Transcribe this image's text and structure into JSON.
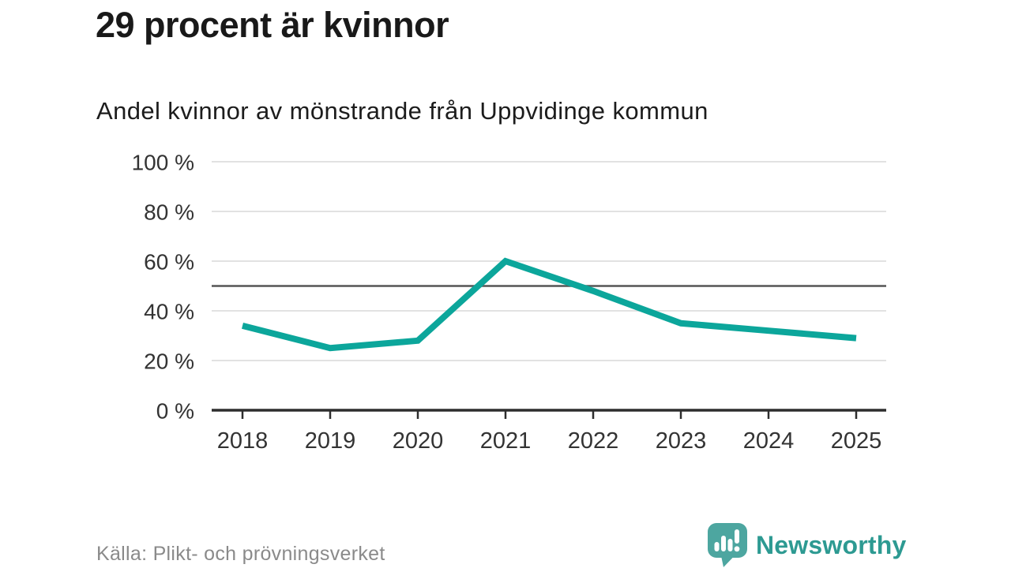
{
  "header": {
    "title": "29 procent är kvinnor",
    "subtitle": "Andel kvinnor av mönstrande från Uppvidinge kommun"
  },
  "chart_data": {
    "type": "line",
    "title": "29 procent är kvinnor",
    "subtitle": "Andel kvinnor av mönstrande från Uppvidinge kommun",
    "x": [
      "2018",
      "2019",
      "2020",
      "2021",
      "2022",
      "2023",
      "2024",
      "2025"
    ],
    "series": [
      {
        "name": "Andel kvinnor av mönstrande (%)",
        "color": "#0ca69b",
        "values": [
          34,
          25,
          28,
          60,
          48,
          35,
          32,
          29
        ]
      }
    ],
    "xlabel": "",
    "ylabel": "",
    "ylim": [
      0,
      100
    ],
    "grid": true,
    "legend_position": "none",
    "yticks": [
      {
        "value": 0,
        "label": "0 %"
      },
      {
        "value": 20,
        "label": "20 %"
      },
      {
        "value": 40,
        "label": "40 %"
      },
      {
        "value": 60,
        "label": "60 %"
      },
      {
        "value": 80,
        "label": "80 %"
      },
      {
        "value": 100,
        "label": "100 %"
      }
    ],
    "reference_line": {
      "value": 50,
      "color": "#555555"
    },
    "grid_color": "#e2e2e2",
    "axis_color": "#2e2e2e",
    "tick_label_color": "#333333"
  },
  "footer": {
    "source": "Källa: Plikt- och prövningsverket",
    "brand": "Newsworthy",
    "brand_color": "#2d9a92",
    "logo_color": "#4da6a0"
  }
}
